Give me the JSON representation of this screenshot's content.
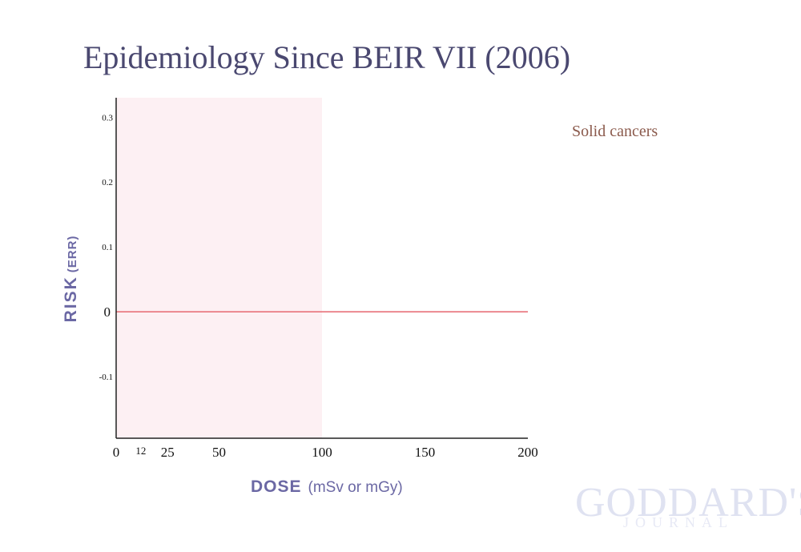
{
  "page": {
    "title": "Epidemiology Since BEIR VII (2006)",
    "watermark_line1": "GODDARD'S",
    "watermark_line2": "JOURNAL"
  },
  "chart_data": {
    "type": "line",
    "xlabel": "DOSE",
    "xlabel_units": "(mSv or mGy)",
    "ylabel": "RISK",
    "ylabel_units": "(ERR)",
    "xlim": [
      0,
      200
    ],
    "ylim": [
      -0.195,
      0.33
    ],
    "x_ticks": [
      {
        "value": 0,
        "label": "0"
      },
      {
        "value": 12,
        "label": "12"
      },
      {
        "value": 25,
        "label": "25"
      },
      {
        "value": 50,
        "label": "50"
      },
      {
        "value": 100,
        "label": "100"
      },
      {
        "value": 150,
        "label": "150"
      },
      {
        "value": 200,
        "label": "200"
      }
    ],
    "y_ticks": [
      {
        "value": 0.3,
        "label": "0.3"
      },
      {
        "value": 0.2,
        "label": "0.2"
      },
      {
        "value": 0.1,
        "label": "0.1"
      },
      {
        "value": 0,
        "label": "0"
      },
      {
        "value": -0.1,
        "label": "-0.1"
      }
    ],
    "shaded_region": {
      "x_start": 0,
      "x_end": 100,
      "color": "#fdf0f3"
    },
    "series": [
      {
        "x": [
          0,
          200
        ],
        "y": [
          0,
          0
        ],
        "color": "#e8727a"
      }
    ],
    "annotation": "Solid cancers",
    "grid": false
  }
}
